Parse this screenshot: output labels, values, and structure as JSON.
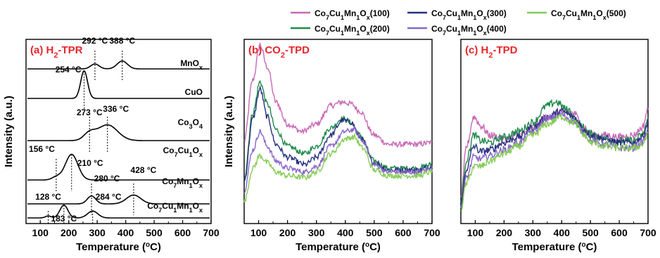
{
  "chart_data": [
    {
      "type": "line",
      "panel_label": "(a)",
      "title": "H2-TPR",
      "title_parts": {
        "pre": "(a) H",
        "sub": "2",
        "post": "-TPR"
      },
      "xlabel": "Temperature (°C)",
      "xlabel_parts": {
        "pre": "Temperature (",
        "sup": "o",
        "post": "C)"
      },
      "ylabel": "Intensity (a.u.)",
      "xlim": [
        50,
        700
      ],
      "xticks": [
        100,
        200,
        300,
        400,
        500,
        600,
        700
      ],
      "series": [
        {
          "name": "MnOx",
          "label": {
            "base": "MnO",
            "sub": "x",
            "tail": ""
          },
          "peaks": [
            {
              "x": 292,
              "h": 0.5,
              "w": 15
            },
            {
              "x": 388,
              "h": 0.8,
              "w": 18
            }
          ],
          "peak_labels": [
            {
              "x": 292,
              "label": "292 °C"
            },
            {
              "x": 388,
              "label": "388 °C"
            }
          ]
        },
        {
          "name": "CuO",
          "label": {
            "base": "CuO",
            "sub": "",
            "tail": ""
          },
          "peaks": [
            {
              "x": 254,
              "h": 2.8,
              "w": 12
            }
          ],
          "peak_labels": [
            {
              "x": 254,
              "label": "254 °C"
            }
          ]
        },
        {
          "name": "Co3O4",
          "label": {
            "base": "Co",
            "sub": "3",
            "tail": "O4"
          },
          "peaks": [
            {
              "x": 273,
              "h": 0.7,
              "w": 20
            },
            {
              "x": 336,
              "h": 1.6,
              "w": 35
            }
          ],
          "peak_labels": [
            {
              "x": 273,
              "label": "273 °C"
            },
            {
              "x": 336,
              "label": "336 °C"
            }
          ]
        },
        {
          "name": "Co7Cu1Ox",
          "label": {
            "base": "Co7Cu1O",
            "sub": "x",
            "tail": ""
          },
          "peaks": [
            {
              "x": 156,
              "h": 0.3,
              "w": 15
            },
            {
              "x": 210,
              "h": 2.6,
              "w": 22
            }
          ],
          "peak_labels": [
            {
              "x": 156,
              "label": "156 °C"
            },
            {
              "x": 210,
              "label": "210 °C"
            }
          ]
        },
        {
          "name": "Co7Mn1Ox",
          "label": {
            "base": "Co7Mn1O",
            "sub": "x",
            "tail": ""
          },
          "peaks": [
            {
              "x": 280,
              "h": 0.8,
              "w": 15
            },
            {
              "x": 428,
              "h": 0.9,
              "w": 25
            }
          ],
          "peak_labels": [
            {
              "x": 280,
              "label": "280 °C"
            },
            {
              "x": 428,
              "label": "428 °C"
            }
          ]
        },
        {
          "name": "Co7Cu1Mn1Ox",
          "label": {
            "base": "Co7Cu1Mn1O",
            "sub": "x",
            "tail": ""
          },
          "peaks": [
            {
              "x": 128,
              "h": 0.2,
              "w": 10
            },
            {
              "x": 183,
              "h": 1.3,
              "w": 14
            },
            {
              "x": 284,
              "h": 0.7,
              "w": 18
            }
          ],
          "peak_labels": [
            {
              "x": 128,
              "label": "128 °C"
            },
            {
              "x": 183,
              "label": "183 °C"
            },
            {
              "x": 284,
              "label": "284 °C"
            }
          ]
        }
      ]
    },
    {
      "type": "line",
      "panel_label": "(b)",
      "title": "CO2-TPD",
      "title_parts": {
        "pre": "(b) CO",
        "sub": "2",
        "post": "-TPD"
      },
      "xlabel": "Temperature (°C)",
      "xlabel_parts": {
        "pre": "Temperature (",
        "sup": "o",
        "post": "C)"
      },
      "ylabel": "Intensity (a.u.)",
      "xlim": [
        50,
        700
      ],
      "xticks": [
        100,
        200,
        300,
        400,
        500,
        600,
        700
      ],
      "series": [
        {
          "name": "Co7Cu1Mn1Ox(100)",
          "color": "#c868b4",
          "x": [
            50,
            80,
            105,
            130,
            160,
            200,
            250,
            300,
            350,
            390,
            420,
            450,
            500,
            550,
            600,
            650,
            700
          ],
          "y": [
            0.45,
            0.78,
            0.97,
            0.85,
            0.66,
            0.54,
            0.5,
            0.54,
            0.64,
            0.66,
            0.65,
            0.61,
            0.48,
            0.43,
            0.43,
            0.43,
            0.44
          ]
        },
        {
          "name": "Co7Cu1Mn1Ox(200)",
          "color": "#1f8a4c",
          "x": [
            50,
            80,
            105,
            130,
            160,
            200,
            260,
            300,
            350,
            390,
            420,
            450,
            500,
            550,
            600,
            650,
            700
          ],
          "y": [
            0.25,
            0.6,
            0.77,
            0.65,
            0.51,
            0.42,
            0.38,
            0.42,
            0.52,
            0.57,
            0.55,
            0.48,
            0.34,
            0.3,
            0.3,
            0.3,
            0.32
          ]
        },
        {
          "name": "Co7Cu1Mn1Ox(300)",
          "color": "#28307e",
          "x": [
            50,
            80,
            105,
            130,
            160,
            200,
            260,
            300,
            350,
            390,
            420,
            450,
            500,
            550,
            600,
            650,
            700
          ],
          "y": [
            0.23,
            0.57,
            0.73,
            0.58,
            0.43,
            0.36,
            0.32,
            0.36,
            0.48,
            0.56,
            0.55,
            0.47,
            0.33,
            0.29,
            0.29,
            0.29,
            0.31
          ]
        },
        {
          "name": "Co7Cu1Mn1Ox(400)",
          "color": "#8866c8",
          "x": [
            50,
            80,
            105,
            130,
            160,
            200,
            260,
            300,
            350,
            400,
            430,
            460,
            500,
            550,
            600,
            650,
            700
          ],
          "y": [
            0.18,
            0.4,
            0.5,
            0.42,
            0.34,
            0.3,
            0.28,
            0.31,
            0.42,
            0.5,
            0.51,
            0.45,
            0.32,
            0.28,
            0.28,
            0.28,
            0.3
          ]
        },
        {
          "name": "Co7Cu1Mn1Ox(500)",
          "color": "#84cc54",
          "x": [
            50,
            80,
            105,
            130,
            160,
            200,
            260,
            300,
            350,
            400,
            430,
            460,
            500,
            550,
            600,
            650,
            700
          ],
          "y": [
            0.12,
            0.3,
            0.37,
            0.33,
            0.28,
            0.26,
            0.25,
            0.28,
            0.38,
            0.46,
            0.47,
            0.41,
            0.29,
            0.26,
            0.26,
            0.26,
            0.28
          ]
        }
      ]
    },
    {
      "type": "line",
      "panel_label": "(c)",
      "title": "H2-TPD",
      "title_parts": {
        "pre": "(c) H",
        "sub": "2",
        "post": "-TPD"
      },
      "xlabel": "Temperature (°C)",
      "xlabel_parts": {
        "pre": "Temperature (",
        "sup": "o",
        "post": "C)"
      },
      "xlim": [
        50,
        700
      ],
      "xticks": [
        100,
        200,
        300,
        400,
        500,
        600,
        700
      ],
      "series": [
        {
          "name": "Co7Cu1Mn1Ox(100)",
          "color": "#c868b4",
          "x": [
            50,
            70,
            95,
            120,
            150,
            200,
            250,
            300,
            350,
            400,
            440,
            480,
            500,
            550,
            600,
            650,
            680,
            700
          ],
          "y": [
            0.15,
            0.42,
            0.58,
            0.53,
            0.48,
            0.46,
            0.48,
            0.52,
            0.58,
            0.61,
            0.6,
            0.52,
            0.48,
            0.48,
            0.47,
            0.48,
            0.52,
            0.62
          ]
        },
        {
          "name": "Co7Cu1Mn1Ox(200)",
          "color": "#1f8a4c",
          "x": [
            50,
            70,
            95,
            120,
            150,
            200,
            250,
            300,
            350,
            380,
            420,
            460,
            500,
            550,
            600,
            650,
            680,
            700
          ],
          "y": [
            0.12,
            0.35,
            0.48,
            0.45,
            0.44,
            0.47,
            0.5,
            0.55,
            0.64,
            0.66,
            0.62,
            0.54,
            0.49,
            0.46,
            0.45,
            0.45,
            0.48,
            0.56
          ]
        },
        {
          "name": "Co7Cu1Mn1Ox(300)",
          "color": "#28307e",
          "x": [
            50,
            70,
            95,
            120,
            150,
            200,
            250,
            300,
            350,
            400,
            440,
            480,
            500,
            550,
            600,
            650,
            680,
            700
          ],
          "y": [
            0.1,
            0.3,
            0.42,
            0.39,
            0.4,
            0.44,
            0.47,
            0.52,
            0.58,
            0.61,
            0.58,
            0.51,
            0.48,
            0.46,
            0.44,
            0.44,
            0.47,
            0.55
          ]
        },
        {
          "name": "Co7Cu1Mn1Ox(400)",
          "color": "#8866c8",
          "x": [
            50,
            70,
            95,
            120,
            150,
            200,
            250,
            300,
            350,
            400,
            440,
            480,
            500,
            550,
            600,
            650,
            680,
            700
          ],
          "y": [
            0.09,
            0.25,
            0.36,
            0.35,
            0.37,
            0.4,
            0.44,
            0.5,
            0.57,
            0.59,
            0.56,
            0.49,
            0.45,
            0.43,
            0.41,
            0.41,
            0.44,
            0.5
          ]
        },
        {
          "name": "Co7Cu1Mn1Ox(500)",
          "color": "#84cc54",
          "x": [
            50,
            70,
            95,
            120,
            150,
            200,
            250,
            300,
            350,
            400,
            440,
            480,
            500,
            550,
            600,
            650,
            680,
            700
          ],
          "y": [
            0.08,
            0.22,
            0.31,
            0.31,
            0.34,
            0.38,
            0.42,
            0.48,
            0.54,
            0.58,
            0.55,
            0.48,
            0.44,
            0.42,
            0.41,
            0.41,
            0.43,
            0.48
          ]
        }
      ]
    }
  ],
  "legend": {
    "placement": "top",
    "entries": [
      {
        "name": "Co7Cu1Mn1Ox(100)",
        "color": "#c868b4"
      },
      {
        "name": "Co7Cu1Mn1Ox(300)",
        "color": "#28307e"
      },
      {
        "name": "Co7Cu1Mn1Ox(500)",
        "color": "#84cc54"
      },
      {
        "name": "Co7Cu1Mn1Ox(200)",
        "color": "#1f8a4c"
      },
      {
        "name": "Co7Cu1Mn1Ox(400)",
        "color": "#8866c8"
      }
    ]
  }
}
